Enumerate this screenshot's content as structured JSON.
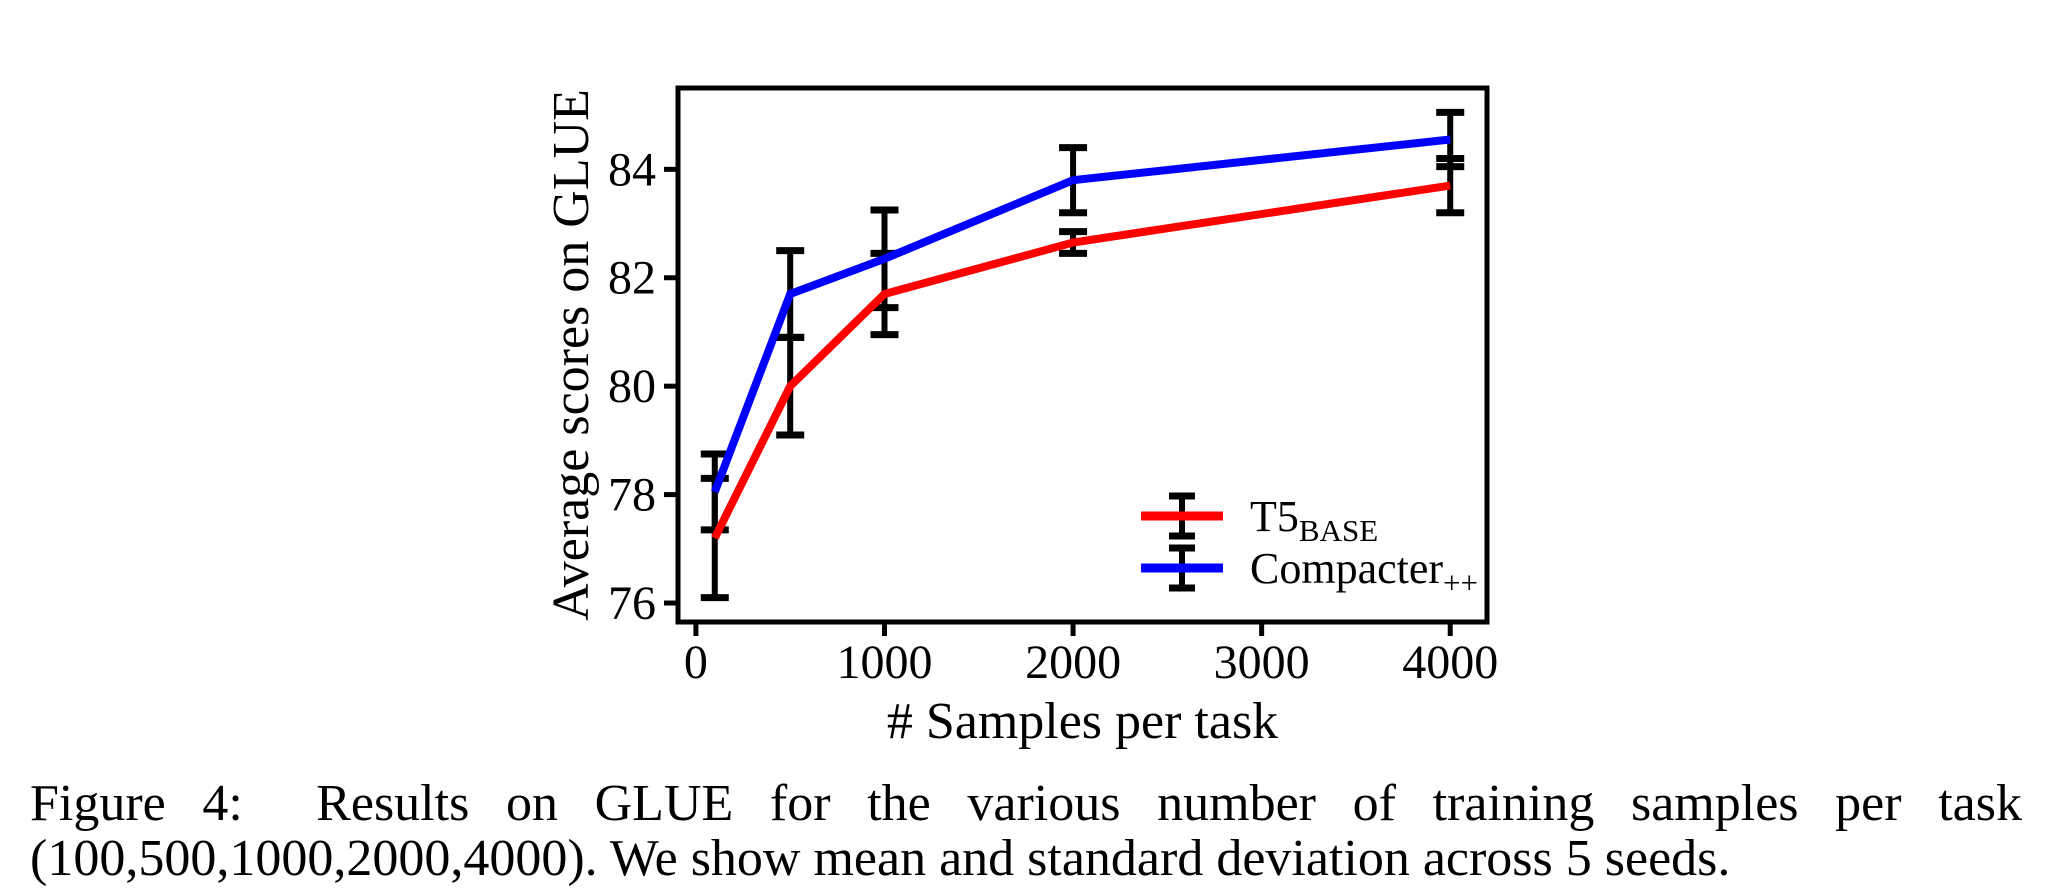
{
  "figure": {
    "caption_line1": "Figure 4:  Results on GLUE for the various number of training samples per task",
    "caption_line2": "(100,500,1000,2000,4000). We show mean and standard deviation across 5 seeds."
  },
  "chart_data": {
    "type": "line",
    "title": "",
    "xlabel": "# Samples per task",
    "ylabel": "Average scores on GLUE",
    "x": [
      100,
      500,
      1000,
      2000,
      4000
    ],
    "xticks": [
      "0",
      "1000",
      "2000",
      "3000",
      "4000"
    ],
    "xtick_values": [
      0,
      1000,
      2000,
      3000,
      4000
    ],
    "yticks": [
      "76",
      "78",
      "80",
      "82",
      "84"
    ],
    "ytick_values": [
      76,
      78,
      80,
      82,
      84
    ],
    "xlim": [
      -95,
      4195
    ],
    "ylim": [
      75.65,
      85.5
    ],
    "grid": false,
    "legend_position": "inside-lower-right",
    "error_bar_color": "#000000",
    "axis_color": "#000000",
    "series": [
      {
        "name": "T5_BASE",
        "label_main": "T5",
        "label_sub": "BASE",
        "color": "#ff0000",
        "means": [
          77.2,
          80.0,
          81.7,
          82.65,
          83.7
        ],
        "std": [
          1.1,
          0.9,
          0.75,
          0.2,
          0.5
        ]
      },
      {
        "name": "Compacter++",
        "label_main": "Compacter",
        "label_sub": "++",
        "color": "#0000ff",
        "means": [
          78.05,
          81.7,
          82.35,
          83.8,
          84.55
        ],
        "std": [
          0.7,
          0.8,
          0.9,
          0.6,
          0.5
        ]
      }
    ]
  }
}
